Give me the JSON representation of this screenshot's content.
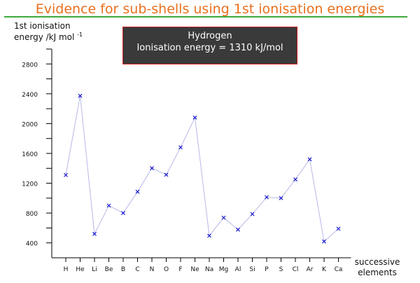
{
  "title": "Evidence for sub-shells using 1st ionisation energies",
  "info_box": {
    "element": "Hydrogen",
    "text": "Ionisation energy = 1310 kJ/mol"
  },
  "colors": {
    "title": "#e8701e",
    "rule": "#3daa3d",
    "line": "#b8b8e8",
    "marker": "#1a1acc",
    "box_bg": "#3a3a3a",
    "box_border": "#cc2222"
  },
  "chart_data": {
    "type": "line",
    "title": "Evidence for sub-shells using 1st ionisation energies",
    "ylabel_line1": "1st ionisation",
    "ylabel_line2": "energy /kJ mol",
    "ylabel_superscript": "-1",
    "xlabel_line1": "successive",
    "xlabel_line2": "elements",
    "ylim": [
      200,
      3000
    ],
    "yticks": [
      400,
      800,
      1200,
      1600,
      2000,
      2400,
      2800
    ],
    "categories": [
      "H",
      "He",
      "Li",
      "Be",
      "B",
      "C",
      "N",
      "O",
      "F",
      "Ne",
      "Na",
      "Mg",
      "Al",
      "Si",
      "P",
      "S",
      "Cl",
      "Ar",
      "K",
      "Ca"
    ],
    "series": [
      {
        "values": [
          1310,
          2372,
          520,
          900,
          801,
          1086,
          1402,
          1314,
          1681,
          2081,
          496,
          738,
          578,
          787,
          1012,
          1000,
          1251,
          1521,
          419,
          590
        ]
      }
    ],
    "marker": "x",
    "grid": false
  }
}
